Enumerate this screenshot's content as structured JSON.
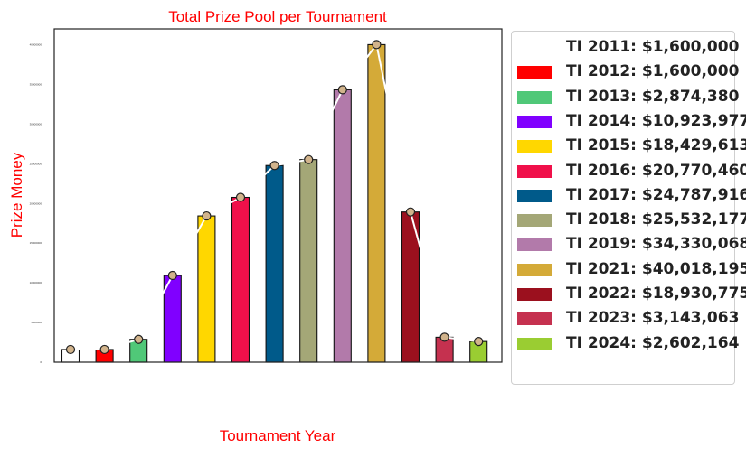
{
  "chart_data": {
    "type": "bar",
    "title": "Total Prize Pool per Tournament",
    "xlabel": "Tournament Year",
    "ylabel": "Prize Money",
    "ylim": [
      0,
      42000000
    ],
    "yticks": [
      "0",
      "5000000",
      "10000000",
      "15000000",
      "20000000",
      "25000000",
      "30000000",
      "35000000",
      "40000000"
    ],
    "title_color": "#ff0000",
    "label_color": "#ff0000",
    "legend_position": "outside-right",
    "categories": [
      "TI 2011",
      "TI 2012",
      "TI 2013",
      "TI 2014",
      "TI 2015",
      "TI 2016",
      "TI 2017",
      "TI 2018",
      "TI 2019",
      "TI 2021",
      "TI 2022",
      "TI 2023",
      "TI 2024"
    ],
    "values": [
      1600000,
      1600000,
      2874380,
      10923977,
      18429613,
      20770460,
      24787916,
      25532177,
      34330068,
      40018195,
      18930775,
      3143063,
      2602164
    ],
    "colors": [
      "#ffffff",
      "#ff0000",
      "#50c878",
      "#8000ff",
      "#ffd700",
      "#f0104a",
      "#005a8a",
      "#a4a777",
      "#b27aaa",
      "#d4aa38",
      "#9b101e",
      "#c5314f",
      "#9acd32"
    ],
    "legend": [
      "TI 2011: $1,600,000",
      "TI 2012: $1,600,000",
      "TI 2013: $2,874,380",
      "TI 2014: $10,923,977",
      "TI 2015: $18,429,613",
      "TI 2016: $20,770,460",
      "TI 2017: $24,787,916",
      "TI 2018: $25,532,177",
      "TI 2019: $34,330,068",
      "TI 2021: $40,018,195",
      "TI 2022: $18,930,775",
      "TI 2023: $3,143,063",
      "TI 2024: $2,602,164"
    ]
  }
}
